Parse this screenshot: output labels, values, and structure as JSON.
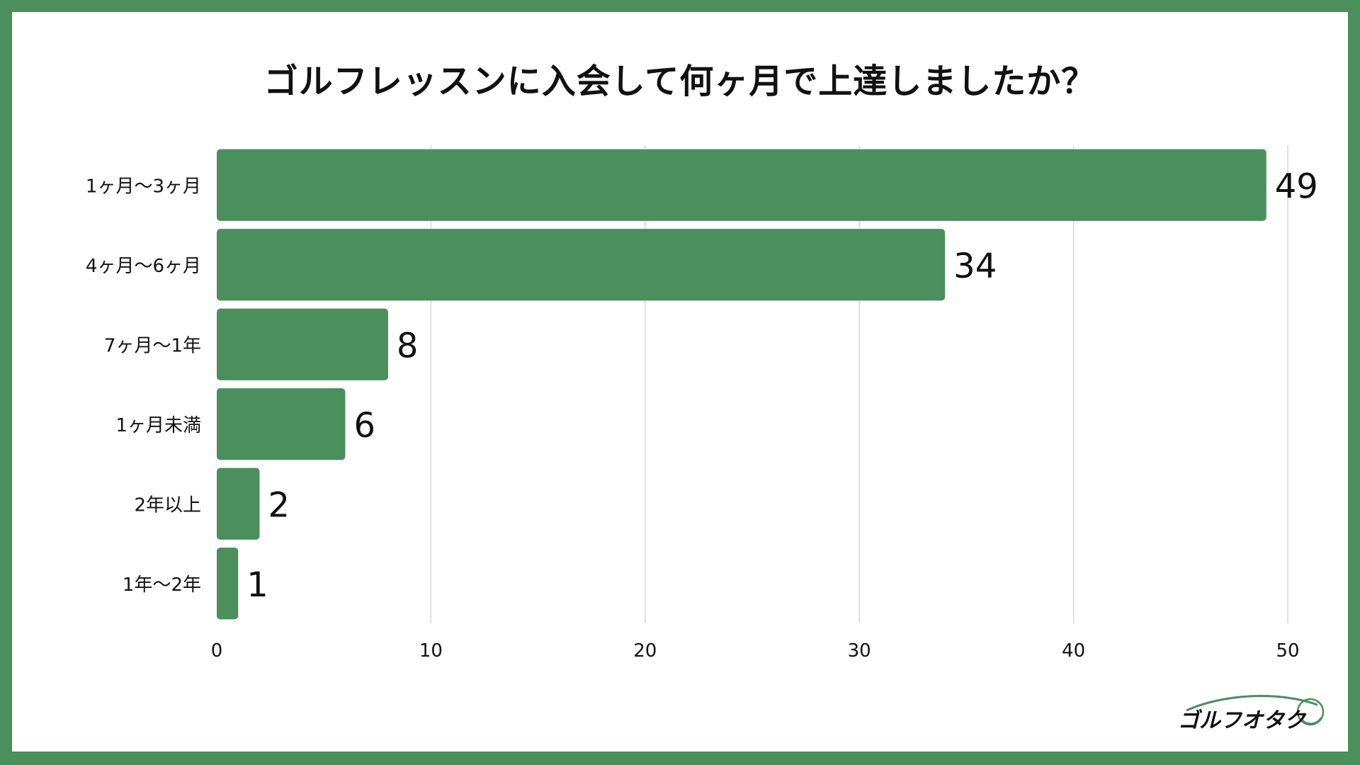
{
  "colors": {
    "frame": "#4a8f5c",
    "bar": "#4a8f5c",
    "grid": "#d9d9d9",
    "text": "#111111"
  },
  "title": "ゴルフレッスンに入会して何ヶ月で上達しましたか？",
  "logo": {
    "text": "ゴルフオタク",
    "icon": "golf-ball-swoosh-icon"
  },
  "chart_data": {
    "type": "bar",
    "orientation": "horizontal",
    "categories": [
      "1ヶ月〜3ヶ月",
      "4ヶ月〜6ヶ月",
      "7ヶ月〜1年",
      "1ヶ月未満",
      "2年以上",
      "1年〜2年"
    ],
    "values": [
      49,
      34,
      8,
      6,
      2,
      1
    ],
    "xlim": [
      0,
      50
    ],
    "xticks": [
      0,
      10,
      20,
      30,
      40,
      50
    ],
    "grid": true,
    "legend": "none",
    "data_labels": true
  }
}
